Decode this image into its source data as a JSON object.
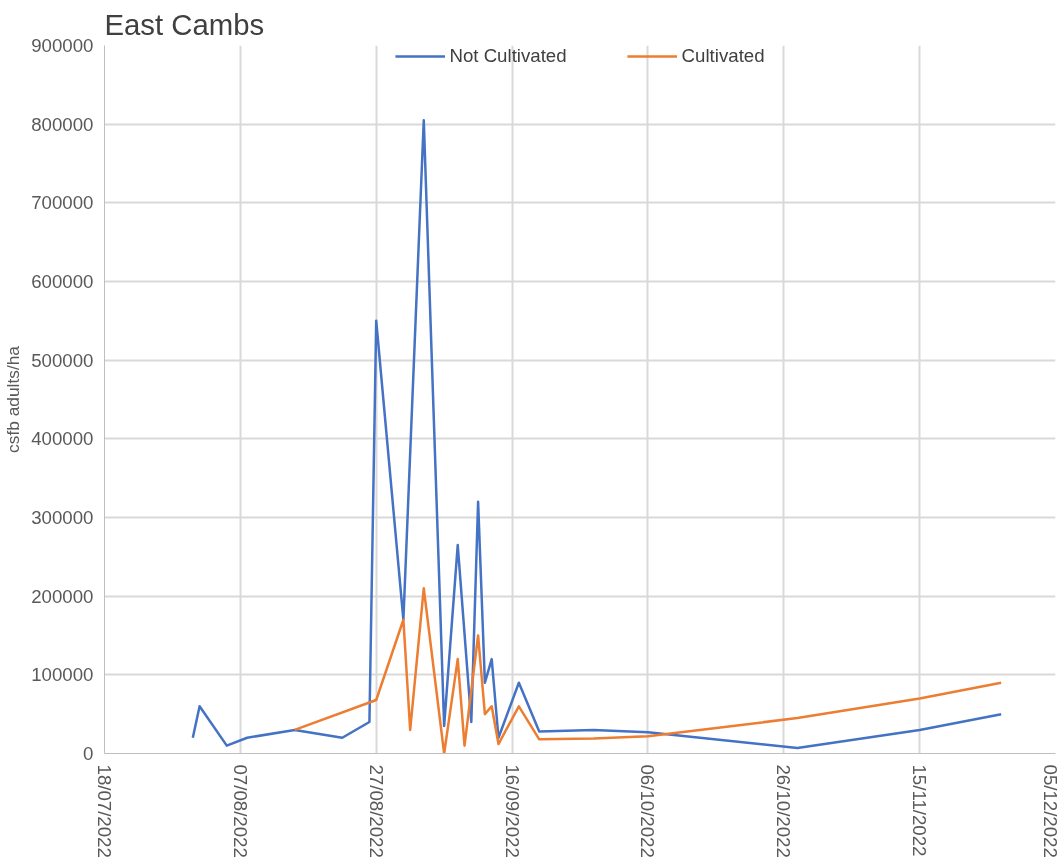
{
  "chart_data": {
    "type": "line",
    "title": "East Cambs",
    "ylabel": "csfb adults/ha",
    "xlim": [
      "2022-07-18",
      "2022-12-05"
    ],
    "xticks": [
      {
        "value": "2022-07-18",
        "label": "18/07/2022"
      },
      {
        "value": "2022-08-07",
        "label": "07/08/2022"
      },
      {
        "value": "2022-08-27",
        "label": "27/08/2022"
      },
      {
        "value": "2022-09-16",
        "label": "16/09/2022"
      },
      {
        "value": "2022-10-06",
        "label": "06/10/2022"
      },
      {
        "value": "2022-10-26",
        "label": "26/10/2022"
      },
      {
        "value": "2022-11-15",
        "label": "15/11/2022"
      },
      {
        "value": "2022-12-05",
        "label": "05/12/2022"
      }
    ],
    "ylim": [
      0,
      900000
    ],
    "yticks": [
      0,
      100000,
      200000,
      300000,
      400000,
      500000,
      600000,
      700000,
      800000,
      900000
    ],
    "grid": true,
    "legend": "top",
    "marker": "none",
    "line_style": "solid",
    "series": [
      {
        "name": "Not Cultivated",
        "color": "#4472c4",
        "x": [
          "2022-07-31",
          "2022-08-01",
          "2022-08-05",
          "2022-08-08",
          "2022-08-15",
          "2022-08-22",
          "2022-08-26",
          "2022-08-27",
          "2022-08-31",
          "2022-09-03",
          "2022-09-06",
          "2022-09-08",
          "2022-09-10",
          "2022-09-11",
          "2022-09-12",
          "2022-09-13",
          "2022-09-14",
          "2022-09-17",
          "2022-09-20",
          "2022-09-28",
          "2022-10-06",
          "2022-10-28",
          "2022-11-15",
          "2022-11-27"
        ],
        "values": [
          20000,
          60000,
          10000,
          20000,
          30000,
          20000,
          40000,
          550000,
          170000,
          805000,
          35000,
          265000,
          40000,
          320000,
          90000,
          120000,
          20000,
          90000,
          28000,
          30000,
          27000,
          7000,
          30000,
          50000
        ]
      },
      {
        "name": "Cultivated",
        "color": "#ed7d31",
        "x": [
          "2022-08-15",
          "2022-08-27",
          "2022-08-31",
          "2022-09-01",
          "2022-09-03",
          "2022-09-06",
          "2022-09-08",
          "2022-09-09",
          "2022-09-11",
          "2022-09-12",
          "2022-09-13",
          "2022-09-14",
          "2022-09-17",
          "2022-09-20",
          "2022-09-28",
          "2022-10-06",
          "2022-10-28",
          "2022-11-15",
          "2022-11-27"
        ],
        "values": [
          30000,
          68000,
          170000,
          30000,
          210000,
          0,
          120000,
          10000,
          150000,
          50000,
          60000,
          12000,
          60000,
          18000,
          19000,
          22000,
          45000,
          70000,
          90000
        ]
      }
    ]
  }
}
